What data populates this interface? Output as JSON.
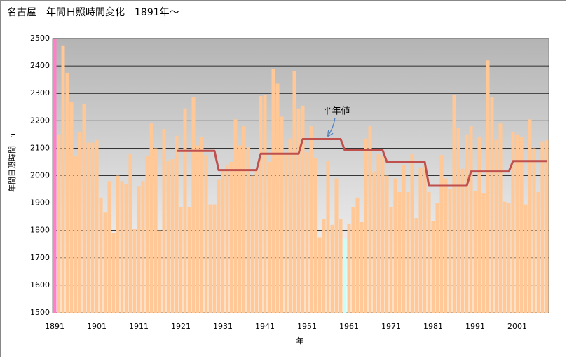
{
  "chart_data": {
    "type": "bar",
    "title": "名古屋　年間日照時間変化　1891年～",
    "x_label": "年",
    "y_label": "年間日照時間　h",
    "annotation": "平年値",
    "categories": [
      "1891",
      null,
      null,
      null,
      null,
      null,
      null,
      null,
      null,
      null,
      "1901",
      null,
      null,
      null,
      null,
      null,
      null,
      null,
      null,
      null,
      "1911",
      null,
      null,
      null,
      null,
      null,
      null,
      null,
      null,
      null,
      "1921",
      null,
      null,
      null,
      null,
      null,
      null,
      null,
      null,
      null,
      "1931",
      null,
      null,
      null,
      null,
      null,
      null,
      null,
      null,
      null,
      "1941",
      null,
      null,
      null,
      null,
      null,
      null,
      null,
      null,
      null,
      "1951",
      null,
      null,
      null,
      null,
      null,
      null,
      null,
      null,
      null,
      "1961",
      null,
      null,
      null,
      null,
      null,
      null,
      null,
      null,
      null,
      "1971",
      null,
      null,
      null,
      null,
      null,
      null,
      null,
      null,
      null,
      "1981",
      null,
      null,
      null,
      null,
      null,
      null,
      null,
      null,
      null,
      "1991",
      null,
      null,
      null,
      null,
      null,
      null,
      null,
      null,
      null,
      "2001",
      null,
      null,
      null,
      null,
      null,
      null,
      null
    ],
    "series": [
      {
        "type": "bar",
        "color": "#ffc896",
        "point_colors": {
          "0": "#ff80c8",
          "69": "#c8fff8"
        },
        "values": [
          2500,
          2150,
          2475,
          2375,
          2270,
          2070,
          2160,
          2260,
          2120,
          2120,
          2130,
          1920,
          1865,
          1980,
          1790,
          2000,
          1980,
          1970,
          2080,
          1805,
          1960,
          1980,
          2070,
          2190,
          2100,
          1800,
          2170,
          2055,
          2060,
          2145,
          1885,
          2245,
          1885,
          2285,
          2110,
          2140,
          2075,
          1895,
          1895,
          1985,
          2020,
          2040,
          2050,
          2205,
          2110,
          2180,
          2105,
          2000,
          2020,
          2290,
          2295,
          2050,
          2390,
          2335,
          2215,
          2080,
          2135,
          2380,
          2245,
          2255,
          2085,
          2180,
          2065,
          1775,
          1840,
          2055,
          1820,
          1990,
          1840,
          1770,
          1825,
          1885,
          1920,
          1830,
          2135,
          2180,
          2015,
          2080,
          2070,
          2000,
          1885,
          1990,
          1940,
          2040,
          1940,
          2080,
          1845,
          2030,
          2040,
          1940,
          1835,
          1900,
          2075,
          1990,
          1950,
          2295,
          2175,
          2025,
          2150,
          2180,
          1945,
          2140,
          1935,
          2420,
          2285,
          2130,
          2190,
          1905,
          1900,
          2160,
          2150,
          2140,
          1895,
          2205,
          2100,
          1940,
          2125,
          2130
        ]
      },
      {
        "type": "line",
        "color": "#c0504d",
        "values": [
          null,
          null,
          null,
          null,
          null,
          null,
          null,
          null,
          null,
          null,
          null,
          null,
          null,
          null,
          null,
          null,
          null,
          null,
          null,
          null,
          null,
          null,
          null,
          null,
          null,
          null,
          null,
          null,
          null,
          2090,
          2090,
          2090,
          2090,
          2090,
          2090,
          2090,
          2090,
          2090,
          2090,
          2020,
          2020,
          2020,
          2020,
          2020,
          2020,
          2020,
          2020,
          2020,
          2020,
          2080,
          2080,
          2080,
          2080,
          2080,
          2080,
          2080,
          2080,
          2080,
          2080,
          2133,
          2133,
          2133,
          2133,
          2133,
          2133,
          2133,
          2133,
          2133,
          2133,
          2092,
          2092,
          2092,
          2092,
          2092,
          2092,
          2092,
          2092,
          2092,
          2092,
          2050,
          2050,
          2050,
          2050,
          2050,
          2050,
          2050,
          2050,
          2050,
          2050,
          1963,
          1963,
          1963,
          1963,
          1963,
          1963,
          1963,
          1963,
          1963,
          1963,
          2015,
          2015,
          2015,
          2015,
          2015,
          2015,
          2015,
          2015,
          2015,
          2015,
          2053,
          2053,
          2053,
          2053,
          2053,
          2053,
          2053,
          2053,
          2053
        ]
      }
    ],
    "ylim": [
      1500,
      2500
    ],
    "yticks": [
      1500,
      1600,
      1700,
      1800,
      1900,
      2000,
      2100,
      2200,
      2300,
      2400,
      2500
    ],
    "grid": true
  }
}
